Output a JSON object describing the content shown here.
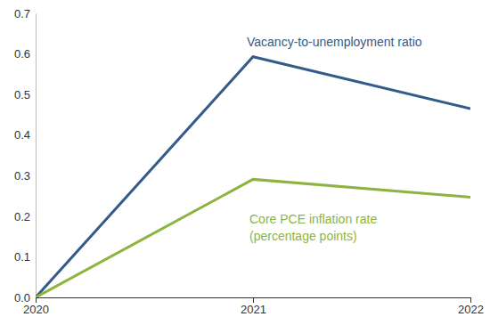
{
  "chart_data": {
    "type": "line",
    "x": [
      2020,
      2021,
      2022
    ],
    "xlim": [
      2020,
      2022
    ],
    "xticks": [
      2020,
      2021,
      2022
    ],
    "ylim": [
      0,
      0.7
    ],
    "yticks": [
      {
        "value": 0,
        "label": "0.0"
      },
      0.1,
      0.2,
      0.3,
      0.4,
      0.5,
      0.6,
      0.7
    ],
    "grid": false,
    "series": [
      {
        "name": "Vacancy-to-unemployment ratio",
        "color": "#335b8a",
        "values": [
          0,
          0.593,
          0.465
        ]
      },
      {
        "name": "Core PCE inflation rate (percentage points)",
        "color": "#8db43e",
        "values": [
          0,
          0.291,
          0.247
        ]
      }
    ]
  }
}
